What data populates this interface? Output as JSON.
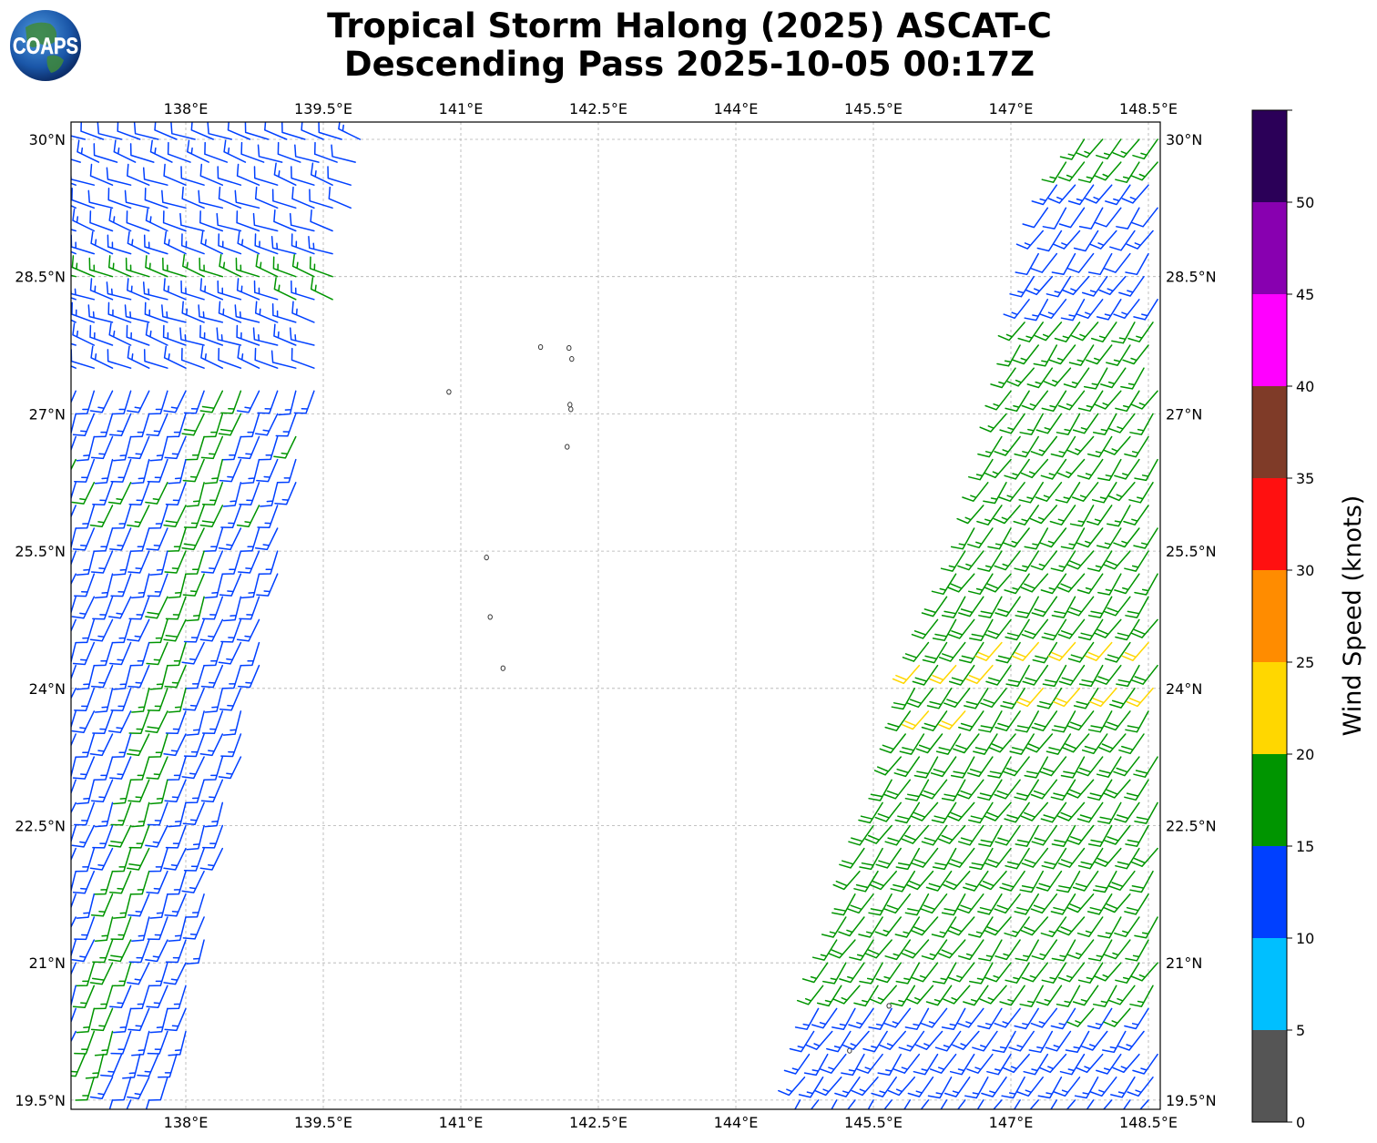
{
  "title_line1": "Tropical Storm Halong (2025) ASCAT-C",
  "title_line2": "Descending Pass 2025-10-05 00:17Z",
  "logo": {
    "text": "COAPS",
    "icon": "globe-logo-icon"
  },
  "map": {
    "lon_range": [
      136.75,
      148.65
    ],
    "lat_range": [
      19.3,
      30.15
    ],
    "lon_ticks": [
      {
        "value": 138,
        "label": "138°E"
      },
      {
        "value": 139.5,
        "label": "139.5°E"
      },
      {
        "value": 141,
        "label": "141°E"
      },
      {
        "value": 142.5,
        "label": "142.5°E"
      },
      {
        "value": 144,
        "label": "144°E"
      },
      {
        "value": 145.5,
        "label": "145.5°E"
      },
      {
        "value": 147,
        "label": "147°E"
      },
      {
        "value": 148.5,
        "label": "148.5°E"
      }
    ],
    "lat_ticks": [
      {
        "value": 30,
        "label": "30°N"
      },
      {
        "value": 28.5,
        "label": "28.5°N"
      },
      {
        "value": 27,
        "label": "27°N"
      },
      {
        "value": 25.5,
        "label": "25.5°N"
      },
      {
        "value": 24,
        "label": "24°N"
      },
      {
        "value": 22.5,
        "label": "22.5°N"
      },
      {
        "value": 21,
        "label": "21°N"
      },
      {
        "value": 19.5,
        "label": "19.5°N"
      }
    ],
    "gridlines": true,
    "islands": [
      {
        "lon": 141.87,
        "lat": 27.73
      },
      {
        "lon": 142.18,
        "lat": 27.72
      },
      {
        "lon": 142.21,
        "lat": 27.6
      },
      {
        "lon": 142.19,
        "lat": 27.1
      },
      {
        "lon": 142.2,
        "lat": 27.05
      },
      {
        "lon": 142.16,
        "lat": 26.64
      },
      {
        "lon": 140.87,
        "lat": 27.24
      },
      {
        "lon": 141.28,
        "lat": 25.43
      },
      {
        "lon": 141.32,
        "lat": 24.78
      },
      {
        "lon": 141.46,
        "lat": 24.22
      },
      {
        "lon": 145.67,
        "lat": 20.53
      },
      {
        "lon": 145.24,
        "lat": 20.04
      }
    ]
  },
  "colorbar": {
    "label": "Wind Speed (knots)",
    "bounds": [
      0,
      5,
      10,
      15,
      20,
      25,
      30,
      35,
      40,
      45,
      50,
      55
    ],
    "tick_labels": [
      "0",
      "5",
      "10",
      "15",
      "20",
      "25",
      "30",
      "35",
      "40",
      "45",
      "50"
    ],
    "colors": [
      "#555555",
      "#00bfff",
      "#0040ff",
      "#009500",
      "#ffd700",
      "#ff8c00",
      "#ff1010",
      "#7f3b28",
      "#ff00ff",
      "#8800b0",
      "#2b0058"
    ]
  },
  "wind_swaths": [
    {
      "name": "west-swath",
      "direction_from_deg": 290,
      "rows": [
        {
          "lat": 30.0,
          "lon_start": 136.9,
          "lon_end": 139.95,
          "speed": 12
        },
        {
          "lat": 29.75,
          "lon_start": 136.85,
          "lon_end": 139.9,
          "speed": 12
        },
        {
          "lat": 29.5,
          "lon_start": 136.8,
          "lon_end": 139.85,
          "speed": 12
        },
        {
          "lat": 29.25,
          "lon_start": 136.8,
          "lon_end": 139.8,
          "speed": 12
        },
        {
          "lat": 29.0,
          "lon_start": 136.8,
          "lon_end": 139.75,
          "speed": 12
        },
        {
          "lat": 28.75,
          "lon_start": 136.8,
          "lon_end": 139.7,
          "speed": 13
        },
        {
          "lat": 28.5,
          "lon_start": 136.8,
          "lon_end": 139.65,
          "speed": 16,
          "note": ""
        },
        {
          "lat": 28.25,
          "lon_start": 136.8,
          "lon_end": 139.6,
          "speed": 14
        },
        {
          "lat": 28.0,
          "lon_start": 136.8,
          "lon_end": 139.55,
          "speed": 13
        },
        {
          "lat": 27.75,
          "lon_start": 136.8,
          "lon_end": 139.5,
          "speed": 13
        },
        {
          "lat": 27.5,
          "lon_start": 136.8,
          "lon_end": 139.45,
          "speed": 12
        }
      ]
    },
    {
      "name": "west-swath-southerly",
      "direction_from_deg": 200,
      "rows": [
        {
          "lat": 27.25,
          "lon_start": 136.8,
          "lon_end": 139.4,
          "speed": 13
        },
        {
          "lat": 27.0,
          "lon_start": 136.8,
          "lon_end": 139.35,
          "speed": 13
        },
        {
          "lat": 26.75,
          "lon_start": 136.8,
          "lon_end": 139.3,
          "speed": 14
        },
        {
          "lat": 26.5,
          "lon_start": 136.8,
          "lon_end": 139.25,
          "speed": 14
        },
        {
          "lat": 26.25,
          "lon_start": 136.8,
          "lon_end": 139.2,
          "speed": 14
        },
        {
          "lat": 26.0,
          "lon_start": 136.8,
          "lon_end": 139.15,
          "speed": 14
        },
        {
          "lat": 25.75,
          "lon_start": 136.8,
          "lon_end": 139.1,
          "speed": 13
        },
        {
          "lat": 25.5,
          "lon_start": 136.8,
          "lon_end": 139.05,
          "speed": 13
        },
        {
          "lat": 25.25,
          "lon_start": 136.8,
          "lon_end": 139.0,
          "speed": 13
        },
        {
          "lat": 25.0,
          "lon_start": 136.8,
          "lon_end": 138.95,
          "speed": 13
        },
        {
          "lat": 24.75,
          "lon_start": 136.8,
          "lon_end": 138.9,
          "speed": 13
        },
        {
          "lat": 24.5,
          "lon_start": 136.8,
          "lon_end": 138.85,
          "speed": 13
        },
        {
          "lat": 24.25,
          "lon_start": 136.8,
          "lon_end": 138.8,
          "speed": 13
        },
        {
          "lat": 24.0,
          "lon_start": 136.8,
          "lon_end": 138.75,
          "speed": 13
        },
        {
          "lat": 23.75,
          "lon_start": 136.8,
          "lon_end": 138.7,
          "speed": 13
        },
        {
          "lat": 23.5,
          "lon_start": 136.8,
          "lon_end": 138.65,
          "speed": 13
        },
        {
          "lat": 23.25,
          "lon_start": 136.8,
          "lon_end": 138.6,
          "speed": 13
        },
        {
          "lat": 23.0,
          "lon_start": 136.8,
          "lon_end": 138.55,
          "speed": 13
        },
        {
          "lat": 22.75,
          "lon_start": 136.8,
          "lon_end": 138.5,
          "speed": 13
        },
        {
          "lat": 22.5,
          "lon_start": 136.8,
          "lon_end": 138.45,
          "speed": 13
        },
        {
          "lat": 22.25,
          "lon_start": 136.8,
          "lon_end": 138.4,
          "speed": 13
        },
        {
          "lat": 22.0,
          "lon_start": 136.8,
          "lon_end": 138.35,
          "speed": 13
        },
        {
          "lat": 21.75,
          "lon_start": 136.8,
          "lon_end": 138.3,
          "speed": 13
        },
        {
          "lat": 21.5,
          "lon_start": 136.8,
          "lon_end": 138.25,
          "speed": 13
        },
        {
          "lat": 21.25,
          "lon_start": 136.8,
          "lon_end": 138.2,
          "speed": 13
        },
        {
          "lat": 21.0,
          "lon_start": 136.8,
          "lon_end": 138.15,
          "speed": 13
        },
        {
          "lat": 20.75,
          "lon_start": 136.8,
          "lon_end": 138.1,
          "speed": 13
        },
        {
          "lat": 20.5,
          "lon_start": 136.8,
          "lon_end": 138.05,
          "speed": 13
        },
        {
          "lat": 20.25,
          "lon_start": 136.8,
          "lon_end": 138.0,
          "speed": 13
        },
        {
          "lat": 20.0,
          "lon_start": 136.9,
          "lon_end": 137.95,
          "speed": 13
        },
        {
          "lat": 19.75,
          "lon_start": 137.0,
          "lon_end": 137.9,
          "speed": 12
        },
        {
          "lat": 19.5,
          "lon_start": 137.2,
          "lon_end": 137.7,
          "speed": 11
        }
      ],
      "green_band": {
        "lon_offset_from_edge": 0.75,
        "width": 0.45,
        "speed": 17
      }
    },
    {
      "name": "east-swath",
      "direction_from_deg": 215,
      "rows": [
        {
          "lat": 30.0,
          "lon_start": 147.8,
          "lon_end": 148.6,
          "speed": 16
        },
        {
          "lat": 29.75,
          "lon_start": 147.6,
          "lon_end": 148.6,
          "speed": 15
        },
        {
          "lat": 29.5,
          "lon_start": 147.5,
          "lon_end": 148.6,
          "speed": 13
        },
        {
          "lat": 29.25,
          "lon_start": 147.4,
          "lon_end": 148.6,
          "speed": 12
        },
        {
          "lat": 29.0,
          "lon_start": 147.35,
          "lon_end": 148.6,
          "speed": 12
        },
        {
          "lat": 28.75,
          "lon_start": 147.3,
          "lon_end": 148.6,
          "speed": 12
        },
        {
          "lat": 28.5,
          "lon_start": 147.25,
          "lon_end": 148.6,
          "speed": 13
        },
        {
          "lat": 28.25,
          "lon_start": 147.2,
          "lon_end": 148.6,
          "speed": 14
        },
        {
          "lat": 28.0,
          "lon_start": 147.15,
          "lon_end": 148.6,
          "speed": 15
        },
        {
          "lat": 27.75,
          "lon_start": 147.1,
          "lon_end": 148.6,
          "speed": 16
        },
        {
          "lat": 27.5,
          "lon_start": 147.05,
          "lon_end": 148.6,
          "speed": 16
        },
        {
          "lat": 27.25,
          "lon_start": 147.0,
          "lon_end": 148.6,
          "speed": 16
        },
        {
          "lat": 27.0,
          "lon_start": 146.95,
          "lon_end": 148.6,
          "speed": 16
        },
        {
          "lat": 26.75,
          "lon_start": 146.9,
          "lon_end": 148.6,
          "speed": 16
        },
        {
          "lat": 26.5,
          "lon_start": 146.8,
          "lon_end": 148.6,
          "speed": 16
        },
        {
          "lat": 26.25,
          "lon_start": 146.75,
          "lon_end": 148.6,
          "speed": 16
        },
        {
          "lat": 26.0,
          "lon_start": 146.7,
          "lon_end": 148.6,
          "speed": 16
        },
        {
          "lat": 25.75,
          "lon_start": 146.6,
          "lon_end": 148.6,
          "speed": 17
        },
        {
          "lat": 25.5,
          "lon_start": 146.5,
          "lon_end": 148.6,
          "speed": 17
        },
        {
          "lat": 25.25,
          "lon_start": 146.4,
          "lon_end": 148.6,
          "speed": 17
        },
        {
          "lat": 25.0,
          "lon_start": 146.3,
          "lon_end": 148.6,
          "speed": 18
        },
        {
          "lat": 24.75,
          "lon_start": 146.2,
          "lon_end": 148.6,
          "speed": 18
        },
        {
          "lat": 24.5,
          "lon_start": 146.1,
          "lon_end": 148.6,
          "speed": 19
        },
        {
          "lat": 24.25,
          "lon_start": 146.0,
          "lon_end": 148.6,
          "speed": 19
        },
        {
          "lat": 24.0,
          "lon_start": 145.95,
          "lon_end": 148.6,
          "speed": 19
        },
        {
          "lat": 23.75,
          "lon_start": 145.9,
          "lon_end": 148.6,
          "speed": 19
        },
        {
          "lat": 23.5,
          "lon_start": 145.85,
          "lon_end": 148.6,
          "speed": 18
        },
        {
          "lat": 23.25,
          "lon_start": 145.8,
          "lon_end": 148.6,
          "speed": 18
        },
        {
          "lat": 23.0,
          "lon_start": 145.7,
          "lon_end": 148.6,
          "speed": 18
        },
        {
          "lat": 22.75,
          "lon_start": 145.6,
          "lon_end": 148.6,
          "speed": 18
        },
        {
          "lat": 22.5,
          "lon_start": 145.5,
          "lon_end": 148.6,
          "speed": 18
        },
        {
          "lat": 22.25,
          "lon_start": 145.4,
          "lon_end": 148.6,
          "speed": 18
        },
        {
          "lat": 22.0,
          "lon_start": 145.35,
          "lon_end": 148.6,
          "speed": 18
        },
        {
          "lat": 21.75,
          "lon_start": 145.3,
          "lon_end": 148.6,
          "speed": 18
        },
        {
          "lat": 21.5,
          "lon_start": 145.2,
          "lon_end": 148.6,
          "speed": 17
        },
        {
          "lat": 21.25,
          "lon_start": 145.1,
          "lon_end": 148.6,
          "speed": 17
        },
        {
          "lat": 21.0,
          "lon_start": 145.0,
          "lon_end": 148.6,
          "speed": 16
        },
        {
          "lat": 20.75,
          "lon_start": 144.95,
          "lon_end": 148.6,
          "speed": 15
        },
        {
          "lat": 20.5,
          "lon_start": 144.9,
          "lon_end": 148.6,
          "speed": 14
        },
        {
          "lat": 20.25,
          "lon_start": 144.85,
          "lon_end": 148.6,
          "speed": 13
        },
        {
          "lat": 20.0,
          "lon_start": 144.8,
          "lon_end": 148.6,
          "speed": 13
        },
        {
          "lat": 19.75,
          "lon_start": 144.75,
          "lon_end": 148.6,
          "speed": 13
        },
        {
          "lat": 19.5,
          "lon_start": 144.7,
          "lon_end": 148.6,
          "speed": 13
        }
      ]
    }
  ]
}
